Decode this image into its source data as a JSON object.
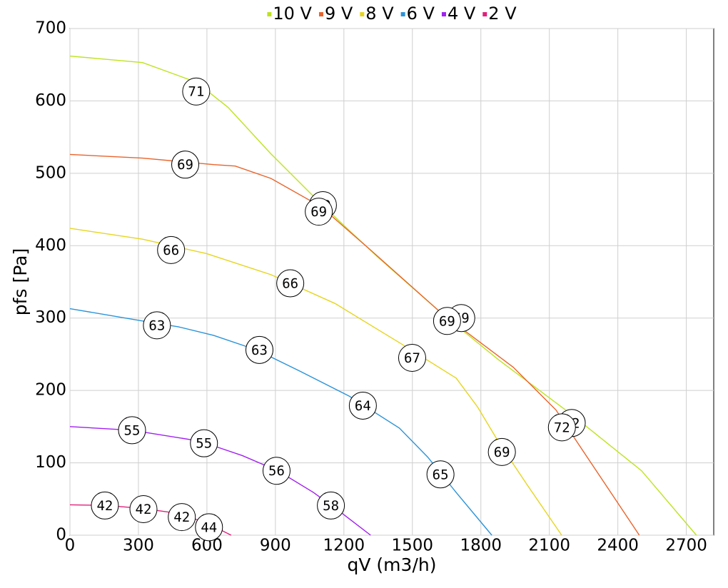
{
  "chart_data": {
    "type": "line",
    "x_label": "qV (m3/h)",
    "y_label": "pfs [Pa]",
    "xlim": [
      0,
      2820
    ],
    "ylim": [
      0,
      700
    ],
    "xticks": [
      0,
      300,
      600,
      900,
      1200,
      1500,
      1800,
      2100,
      2400,
      2700
    ],
    "yticks": [
      0,
      100,
      200,
      300,
      400,
      500,
      600,
      700
    ],
    "grid": true,
    "legend": "top",
    "series": [
      {
        "name": "10 V",
        "color": "#bde31e",
        "x": [
          0,
          318,
          553,
          693,
          880,
          1099,
          1349,
          1630,
          1879,
          2192,
          2504,
          2744
        ],
        "values": [
          662,
          653,
          626,
          591,
          527,
          458,
          384,
          306,
          242,
          168,
          89,
          0
        ],
        "markers": [
          {
            "x": 553,
            "y": 613,
            "label": 71
          },
          {
            "x": 1108,
            "y": 456,
            "label": 69
          },
          {
            "x": 1714,
            "y": 300,
            "label": 69
          },
          {
            "x": 2198,
            "y": 155,
            "label": 72
          }
        ]
      },
      {
        "name": "9 V",
        "color": "#e8642c",
        "x": [
          0,
          318,
          630,
          724,
          880,
          1099,
          1317,
          1630,
          1942,
          2129,
          2223,
          2348,
          2494
        ],
        "values": [
          526,
          521,
          512,
          510,
          493,
          454,
          394,
          306,
          232,
          173,
          128,
          69,
          0
        ],
        "markers": [
          {
            "x": 505,
            "y": 512,
            "label": 69
          },
          {
            "x": 1090,
            "y": 447,
            "label": 69
          },
          {
            "x": 1652,
            "y": 296,
            "label": 69
          },
          {
            "x": 2155,
            "y": 149,
            "label": 72
          }
        ]
      },
      {
        "name": "8 V",
        "color": "#e6d51e",
        "x": [
          0,
          318,
          599,
          880,
          1162,
          1443,
          1692,
          1786,
          1879,
          2004,
          2154
        ],
        "values": [
          424,
          409,
          389,
          360,
          320,
          266,
          217,
          177,
          128,
          69,
          0
        ],
        "markers": [
          {
            "x": 443,
            "y": 394,
            "label": 66
          },
          {
            "x": 965,
            "y": 348,
            "label": 66
          },
          {
            "x": 1499,
            "y": 245,
            "label": 67
          },
          {
            "x": 1892,
            "y": 115,
            "label": 69
          }
        ]
      },
      {
        "name": "6 V",
        "color": "#2a93d8",
        "x": [
          0,
          318,
          474,
          630,
          817,
          1005,
          1224,
          1443,
          1567,
          1692,
          1848
        ],
        "values": [
          313,
          296,
          288,
          276,
          256,
          227,
          192,
          148,
          108,
          59,
          0
        ],
        "markers": [
          {
            "x": 381,
            "y": 290,
            "label": 63
          },
          {
            "x": 830,
            "y": 256,
            "label": 63
          },
          {
            "x": 1283,
            "y": 179,
            "label": 64
          },
          {
            "x": 1623,
            "y": 84,
            "label": 65
          }
        ]
      },
      {
        "name": "4 V",
        "color": "#a020f0",
        "x": [
          0,
          272,
          568,
          755,
          911,
          1067,
          1193,
          1317
        ],
        "values": [
          150,
          145,
          130,
          110,
          89,
          59,
          30,
          0
        ],
        "markers": [
          {
            "x": 272,
            "y": 145,
            "label": 55
          },
          {
            "x": 587,
            "y": 127,
            "label": 55
          },
          {
            "x": 905,
            "y": 89,
            "label": 56
          },
          {
            "x": 1143,
            "y": 41,
            "label": 58
          }
        ]
      },
      {
        "name": "2 V",
        "color": "#e0207a",
        "x": [
          0,
          162,
          318,
          474,
          599,
          706
        ],
        "values": [
          42,
          41,
          37,
          30,
          17,
          0
        ],
        "markers": [
          {
            "x": 153,
            "y": 41,
            "label": 42
          },
          {
            "x": 322,
            "y": 36,
            "label": 42
          },
          {
            "x": 490,
            "y": 25,
            "label": 42
          },
          {
            "x": 609,
            "y": 11,
            "label": 44
          }
        ]
      }
    ]
  }
}
